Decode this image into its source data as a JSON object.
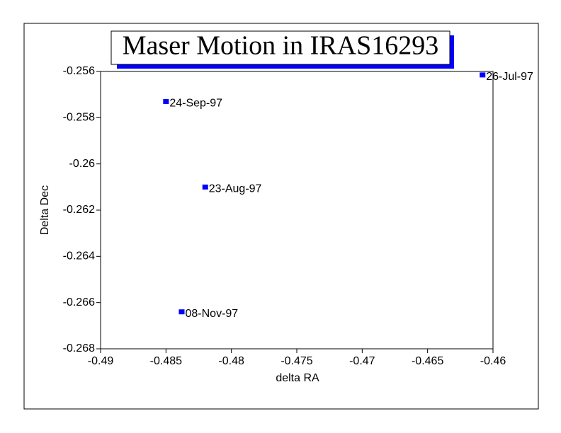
{
  "chart_data": {
    "type": "scatter",
    "title": "Maser Motion in IRAS16293",
    "x_label": "delta RA",
    "y_label": "Delta Dec",
    "x": [
      -0.4608,
      -0.485,
      -0.482,
      -0.4838
    ],
    "values": [
      -0.25615,
      -0.2573,
      -0.261,
      -0.2664
    ],
    "point_labels": [
      "26-Jul-97",
      "24-Sep-97",
      "23-Aug-97",
      "08-Nov-97"
    ],
    "color": "#0000ff",
    "xlim": [
      -0.49,
      -0.46
    ],
    "xticks": [
      -0.49,
      -0.485,
      -0.48,
      -0.475,
      -0.47,
      -0.465,
      -0.46
    ],
    "ylim": [
      -0.268,
      -0.256
    ],
    "yticks": [
      -0.268,
      -0.266,
      -0.264,
      -0.262,
      -0.26,
      -0.258,
      -0.256
    ],
    "grid": false
  }
}
